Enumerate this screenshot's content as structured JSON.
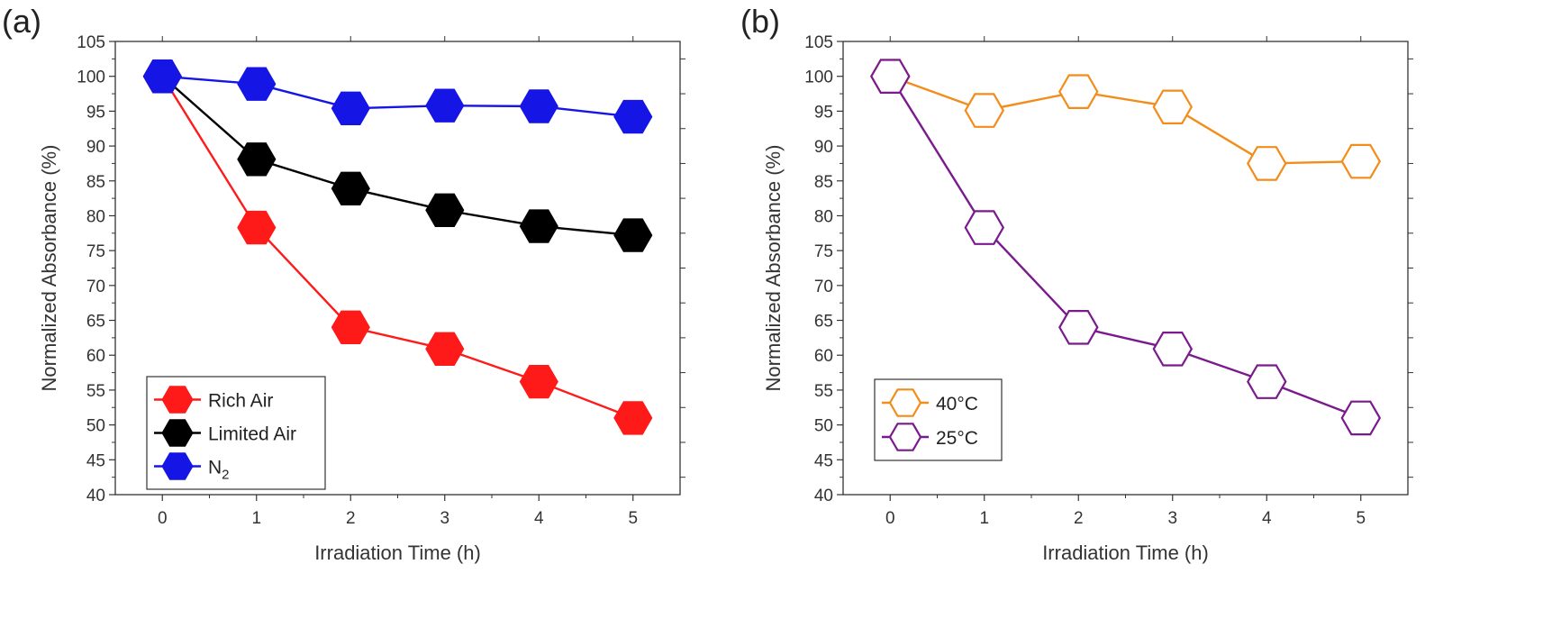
{
  "chart_data": [
    {
      "type": "line",
      "panel_label": "(a)",
      "title": "",
      "xlabel": "Irradiation Time (h)",
      "ylabel": "Normalized Absorbance (%)",
      "x": [
        0,
        1,
        2,
        3,
        4,
        5
      ],
      "xlim": [
        -0.5,
        5.5
      ],
      "ylim": [
        40,
        105
      ],
      "yticks": [
        40,
        45,
        50,
        55,
        60,
        65,
        70,
        75,
        80,
        85,
        90,
        95,
        100,
        105
      ],
      "grid": false,
      "legend_position": "lower-left",
      "marker": "filled-hexagon",
      "series": [
        {
          "name": "Rich Air",
          "color": "#ff1a1a",
          "values": [
            100,
            78.3,
            64.0,
            60.9,
            56.2,
            51.0
          ]
        },
        {
          "name": "Limited Air",
          "color": "#000000",
          "values": [
            100,
            88.1,
            83.9,
            80.8,
            78.5,
            77.2
          ]
        },
        {
          "name": "N",
          "name_subscript": "2",
          "color": "#1515e6",
          "values": [
            100,
            98.9,
            95.4,
            95.8,
            95.7,
            94.2
          ]
        }
      ]
    },
    {
      "type": "line",
      "panel_label": "(b)",
      "title": "",
      "xlabel": "Irradiation Time (h)",
      "ylabel": "Normalized Absorbance (%)",
      "x": [
        0,
        1,
        2,
        3,
        4,
        5
      ],
      "xlim": [
        -0.5,
        5.5
      ],
      "ylim": [
        40,
        105
      ],
      "yticks": [
        40,
        45,
        50,
        55,
        60,
        65,
        70,
        75,
        80,
        85,
        90,
        95,
        100,
        105
      ],
      "grid": false,
      "legend_position": "lower-left",
      "marker": "open-hexagon",
      "series": [
        {
          "name": "40°C",
          "color": "#f28c1a",
          "values": [
            100,
            95.1,
            97.8,
            95.6,
            87.5,
            87.8
          ]
        },
        {
          "name": "25°C",
          "color": "#7a1a8c",
          "values": [
            100,
            78.3,
            64.0,
            60.9,
            56.2,
            51.0
          ]
        }
      ]
    }
  ]
}
